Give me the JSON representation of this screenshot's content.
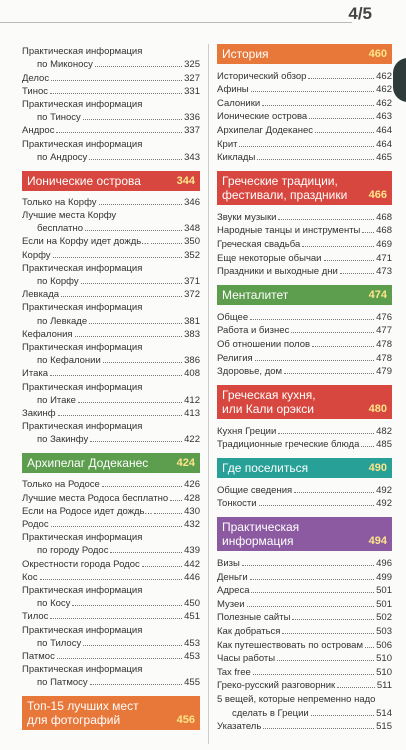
{
  "header": {
    "page_label": "4/5"
  },
  "columns": [
    {
      "groups": [
        {
          "entries": [
            {
              "lines": [
                "Практическая информация",
                "по Миконосу"
              ],
              "page": "325"
            },
            {
              "lines": [
                "Делос"
              ],
              "page": "327"
            },
            {
              "lines": [
                "Тинос"
              ],
              "page": "331"
            },
            {
              "lines": [
                "Практическая информация",
                "по Тиносу"
              ],
              "page": "336"
            },
            {
              "lines": [
                "Андрос"
              ],
              "page": "337"
            },
            {
              "lines": [
                "Практическая информация",
                "по Андросу"
              ],
              "page": "343"
            }
          ]
        },
        {
          "title": [
            "Ионические острова"
          ],
          "page": "344",
          "color": "#d8473f",
          "entries": [
            {
              "lines": [
                "Только на Корфу"
              ],
              "page": "346"
            },
            {
              "lines": [
                "Лучшие места Корфу",
                "бесплатно"
              ],
              "page": "348"
            },
            {
              "lines": [
                "Если на Корфу идет дождь..."
              ],
              "page": "350"
            },
            {
              "lines": [
                "Корфу"
              ],
              "page": "352"
            },
            {
              "lines": [
                "Практическая информация",
                "по Корфу"
              ],
              "page": "371"
            },
            {
              "lines": [
                "Левкада"
              ],
              "page": "372"
            },
            {
              "lines": [
                "Практическая информация",
                "по Левкаде"
              ],
              "page": "381"
            },
            {
              "lines": [
                "Кефалония"
              ],
              "page": "383"
            },
            {
              "lines": [
                "Практическая информация",
                "по Кефалонии"
              ],
              "page": "386"
            },
            {
              "lines": [
                "Итака"
              ],
              "page": "408"
            },
            {
              "lines": [
                "Практическая информация",
                "по Итаке"
              ],
              "page": "412"
            },
            {
              "lines": [
                "Закинф"
              ],
              "page": "413"
            },
            {
              "lines": [
                "Практическая информация",
                "по Закинфу"
              ],
              "page": "422"
            }
          ]
        },
        {
          "title": [
            "Архипелаг Додеканес"
          ],
          "page": "424",
          "color": "#5d9e4e",
          "entries": [
            {
              "lines": [
                "Только на Родосе"
              ],
              "page": "426"
            },
            {
              "lines": [
                "Лучшие места Родоса бесплатно"
              ],
              "page": "428"
            },
            {
              "lines": [
                "Если на Родосе идет дождь..."
              ],
              "page": "430"
            },
            {
              "lines": [
                "Родос"
              ],
              "page": "432"
            },
            {
              "lines": [
                "Практическая информация",
                "по городу Родос"
              ],
              "page": "439"
            },
            {
              "lines": [
                "Окрестности города Родос"
              ],
              "page": "442"
            },
            {
              "lines": [
                "Кос"
              ],
              "page": "446"
            },
            {
              "lines": [
                "Практическая информация",
                "по Косу"
              ],
              "page": "450"
            },
            {
              "lines": [
                "Тилос"
              ],
              "page": "451"
            },
            {
              "lines": [
                "Практическая информация",
                "по Тилосу"
              ],
              "page": "453"
            },
            {
              "lines": [
                "Патмос"
              ],
              "page": "453"
            },
            {
              "lines": [
                "Практическая информация",
                "по Патмосу"
              ],
              "page": "455"
            }
          ]
        },
        {
          "title": [
            "Топ-15 лучших мест",
            "для фотографий"
          ],
          "page": "456",
          "color": "#e8773a"
        }
      ]
    },
    {
      "groups": [
        {
          "title": [
            "История"
          ],
          "page": "460",
          "color": "#e8773a",
          "entries": [
            {
              "lines": [
                "Исторический обзор"
              ],
              "page": "462"
            },
            {
              "lines": [
                "Афины"
              ],
              "page": "462"
            },
            {
              "lines": [
                "Салоники"
              ],
              "page": "462"
            },
            {
              "lines": [
                "Ионические острова"
              ],
              "page": "463"
            },
            {
              "lines": [
                "Архипелаг Додеканес"
              ],
              "page": "464"
            },
            {
              "lines": [
                "Крит"
              ],
              "page": "464"
            },
            {
              "lines": [
                "Киклады"
              ],
              "page": "465"
            }
          ]
        },
        {
          "title": [
            "Греческие традиции,",
            "фестивали, праздники"
          ],
          "page": "466",
          "color": "#d8473f",
          "entries": [
            {
              "lines": [
                "Звуки музыки"
              ],
              "page": "468"
            },
            {
              "lines": [
                "Народные танцы и инструменты"
              ],
              "page": "468"
            },
            {
              "lines": [
                "Греческая свадьба"
              ],
              "page": "469"
            },
            {
              "lines": [
                "Еще некоторые обычаи"
              ],
              "page": "471"
            },
            {
              "lines": [
                "Праздники и выходные дни"
              ],
              "page": "473"
            }
          ]
        },
        {
          "title": [
            "Менталитет"
          ],
          "page": "474",
          "color": "#5d9e4e",
          "entries": [
            {
              "lines": [
                "Общее"
              ],
              "page": "476"
            },
            {
              "lines": [
                "Работа и бизнес"
              ],
              "page": "477"
            },
            {
              "lines": [
                "Об отношении полов"
              ],
              "page": "478"
            },
            {
              "lines": [
                "Религия"
              ],
              "page": "478"
            },
            {
              "lines": [
                "Здоровье, дом"
              ],
              "page": "479"
            }
          ]
        },
        {
          "title": [
            "Греческая кухня,",
            "или Кали орэкси"
          ],
          "page": "480",
          "color": "#d8473f",
          "entries": [
            {
              "lines": [
                "Кухня Греции"
              ],
              "page": "482"
            },
            {
              "lines": [
                "Традиционные греческие блюда"
              ],
              "page": "485"
            }
          ]
        },
        {
          "title": [
            "Где поселиться"
          ],
          "page": "490",
          "color": "#27a097",
          "entries": [
            {
              "lines": [
                "Общие сведения"
              ],
              "page": "492"
            },
            {
              "lines": [
                "Тонкости"
              ],
              "page": "492"
            }
          ]
        },
        {
          "title": [
            "Практическая",
            "информация"
          ],
          "page": "494",
          "color": "#8c5aa0",
          "entries": [
            {
              "lines": [
                "Визы"
              ],
              "page": "496"
            },
            {
              "lines": [
                "Деньги"
              ],
              "page": "499"
            },
            {
              "lines": [
                "Адреса"
              ],
              "page": "501"
            },
            {
              "lines": [
                "Музеи"
              ],
              "page": "501"
            },
            {
              "lines": [
                "Полезные сайты"
              ],
              "page": "502"
            },
            {
              "lines": [
                "Как добраться"
              ],
              "page": "503"
            },
            {
              "lines": [
                "Как путешествовать по островам"
              ],
              "page": "506"
            },
            {
              "lines": [
                "Часы работы"
              ],
              "page": "510"
            },
            {
              "lines": [
                "Tax free"
              ],
              "page": "510"
            },
            {
              "lines": [
                "Греко-русский разговорник"
              ],
              "page": "511"
            },
            {
              "lines": [
                "5 вещей, которые непременно надо",
                "сделать в Греции"
              ],
              "page": "514"
            },
            {
              "lines": [
                "Указатель"
              ],
              "page": "515"
            }
          ]
        }
      ]
    }
  ]
}
